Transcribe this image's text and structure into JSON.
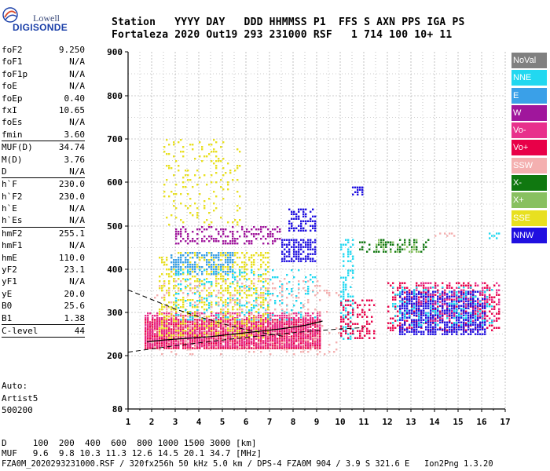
{
  "logo": {
    "line1": "Lowell",
    "line2": "DIGISONDE"
  },
  "header": {
    "labels": "Station   YYYY DAY   DDD HHMMSS P1  FFS S AXN PPS IGA PS",
    "values": "Fortaleza 2020 Out19 293 231000 RSF   1 714 100 10+ 11"
  },
  "params": {
    "group1": [
      {
        "label": "foF2",
        "value": "9.250"
      },
      {
        "label": "foF1",
        "value": "N/A"
      },
      {
        "label": "foF1p",
        "value": "N/A"
      },
      {
        "label": "foE",
        "value": "N/A"
      },
      {
        "label": "foEp",
        "value": "0.40"
      },
      {
        "label": "fxI",
        "value": "10.65"
      },
      {
        "label": "foEs",
        "value": "N/A"
      },
      {
        "label": "fmin",
        "value": "3.60"
      }
    ],
    "group2": [
      {
        "label": "MUF(D)",
        "value": "34.74"
      },
      {
        "label": "M(D)",
        "value": "3.76"
      },
      {
        "label": "D",
        "value": "N/A"
      }
    ],
    "group3": [
      {
        "label": "h`F",
        "value": "230.0"
      },
      {
        "label": "h`F2",
        "value": "230.0"
      },
      {
        "label": "h`E",
        "value": "N/A"
      },
      {
        "label": "h`Es",
        "value": "N/A"
      }
    ],
    "group4": [
      {
        "label": "hmF2",
        "value": "255.1"
      },
      {
        "label": "hmF1",
        "value": "N/A"
      },
      {
        "label": "hmE",
        "value": "110.0"
      },
      {
        "label": "yF2",
        "value": "23.1"
      },
      {
        "label": "yF1",
        "value": "N/A"
      },
      {
        "label": "yE",
        "value": "20.0"
      },
      {
        "label": "B0",
        "value": "25.6"
      },
      {
        "label": "B1",
        "value": "1.38"
      }
    ],
    "group5": [
      {
        "label": "C-level",
        "value": "44"
      }
    ],
    "auto_label": "Auto:",
    "auto_system": "Artist5",
    "auto_version": "500200"
  },
  "legend": [
    {
      "label": "NoVal",
      "color": "#808080"
    },
    {
      "label": "NNE",
      "color": "#22d8f0"
    },
    {
      "label": "E",
      "color": "#3aa0e8"
    },
    {
      "label": "W",
      "color": "#a0169c"
    },
    {
      "label": "Vo-",
      "color": "#e8308c"
    },
    {
      "label": "Vo+",
      "color": "#e80048"
    },
    {
      "label": "SSW",
      "color": "#f4b0b0"
    },
    {
      "label": "X-",
      "color": "#107810"
    },
    {
      "label": "X+",
      "color": "#88c060"
    },
    {
      "label": "SSE",
      "color": "#e8e020"
    },
    {
      "label": "NNW",
      "color": "#2010e0"
    }
  ],
  "bottom": {
    "line1": "D     100  200  400  600  800 1000 1500 3000 [km]",
    "line2": "MUF   9.6  9.8 10.3 11.3 12.6 14.5 20.1 34.7 [MHz]",
    "line3": "FZA0M_2020293231000.RSF / 320fx256h 50 kHz 5.0 km / DPS-4 FZA0M 904 / 3.9 S 321.6 E   Ion2Png 1.3.20"
  },
  "chart_data": {
    "type": "scatter",
    "title": "",
    "xlabel": "",
    "ylabel": "",
    "xlim": [
      1,
      17
    ],
    "ylim": [
      80,
      900
    ],
    "x_ticks": [
      1,
      2,
      3,
      4,
      5,
      6,
      7,
      8,
      9,
      10,
      11,
      12,
      13,
      14,
      15,
      16,
      17
    ],
    "y_ticks": [
      80,
      200,
      300,
      400,
      500,
      600,
      700,
      800,
      900
    ],
    "grid": true,
    "clusters": [
      {
        "series": "Vo+",
        "x": [
          1.7,
          9.2
        ],
        "y": [
          215,
          285
        ],
        "density": 0.9
      },
      {
        "series": "Vo-",
        "x": [
          1.7,
          9.2
        ],
        "y": [
          220,
          300
        ],
        "density": 0.6
      },
      {
        "series": "SSE",
        "x": [
          2.3,
          7.0
        ],
        "y": [
          240,
          440
        ],
        "density": 0.35
      },
      {
        "series": "E",
        "x": [
          2.8,
          5.5
        ],
        "y": [
          390,
          440
        ],
        "density": 0.5
      },
      {
        "series": "W",
        "x": [
          3.0,
          7.5
        ],
        "y": [
          460,
          500
        ],
        "density": 0.35
      },
      {
        "series": "NNW",
        "x": [
          7.5,
          9.0
        ],
        "y": [
          420,
          470
        ],
        "density": 0.7
      },
      {
        "series": "NNW",
        "x": [
          7.8,
          9.0
        ],
        "y": [
          490,
          540
        ],
        "density": 0.5
      },
      {
        "series": "SSE",
        "x": [
          2.5,
          5.8
        ],
        "y": [
          500,
          700
        ],
        "density": 0.12
      },
      {
        "series": "NNE",
        "x": [
          3.0,
          9.0
        ],
        "y": [
          280,
          400
        ],
        "density": 0.15
      },
      {
        "series": "SSW",
        "x": [
          2.0,
          10.0
        ],
        "y": [
          200,
          380
        ],
        "density": 0.12
      },
      {
        "series": "Vo+",
        "x": [
          12.0,
          16.8
        ],
        "y": [
          260,
          370
        ],
        "density": 0.3
      },
      {
        "series": "NNW",
        "x": [
          12.5,
          16.2
        ],
        "y": [
          250,
          350
        ],
        "density": 0.7
      },
      {
        "series": "NNE",
        "x": [
          12.2,
          16.5
        ],
        "y": [
          270,
          360
        ],
        "density": 0.2
      },
      {
        "series": "Vo-",
        "x": [
          13.2,
          16.8
        ],
        "y": [
          280,
          370
        ],
        "density": 0.2
      },
      {
        "series": "X-",
        "x": [
          10.8,
          13.8
        ],
        "y": [
          440,
          470
        ],
        "density": 0.35
      },
      {
        "series": "X+",
        "x": [
          11.5,
          13.5
        ],
        "y": [
          440,
          470
        ],
        "density": 0.2
      },
      {
        "series": "SSW",
        "x": [
          14.0,
          15.0
        ],
        "y": [
          475,
          485
        ],
        "density": 0.5
      },
      {
        "series": "NNE",
        "x": [
          16.3,
          16.8
        ],
        "y": [
          470,
          485
        ],
        "density": 0.5
      },
      {
        "series": "NNW",
        "x": [
          10.5,
          11.0
        ],
        "y": [
          570,
          590
        ],
        "density": 0.7
      },
      {
        "series": "NNE",
        "x": [
          10.0,
          10.6
        ],
        "y": [
          240,
          470
        ],
        "density": 0.35
      },
      {
        "series": "Vo+",
        "x": [
          10.0,
          11.5
        ],
        "y": [
          240,
          330
        ],
        "density": 0.3
      }
    ],
    "curves": [
      {
        "name": "virtual-height-curve",
        "x": [
          1.8,
          2.5,
          3.5,
          4.5,
          5.5,
          6.5,
          7.5,
          8.5,
          9.25
        ],
        "y": [
          232,
          236,
          240,
          244,
          250,
          256,
          262,
          270,
          280
        ]
      },
      {
        "name": "upper-dashed-curve",
        "x": [
          1.0,
          2.0,
          3.0,
          4.0,
          5.0,
          6.0,
          7.0,
          7.6
        ],
        "y": [
          352,
          330,
          308,
          290,
          274,
          260,
          250,
          245
        ]
      },
      {
        "name": "lower-dashed-curve",
        "x": [
          1.0,
          3.0,
          5.0,
          7.0,
          9.0,
          11.0
        ],
        "y": [
          208,
          223,
          236,
          248,
          258,
          265
        ]
      }
    ]
  }
}
